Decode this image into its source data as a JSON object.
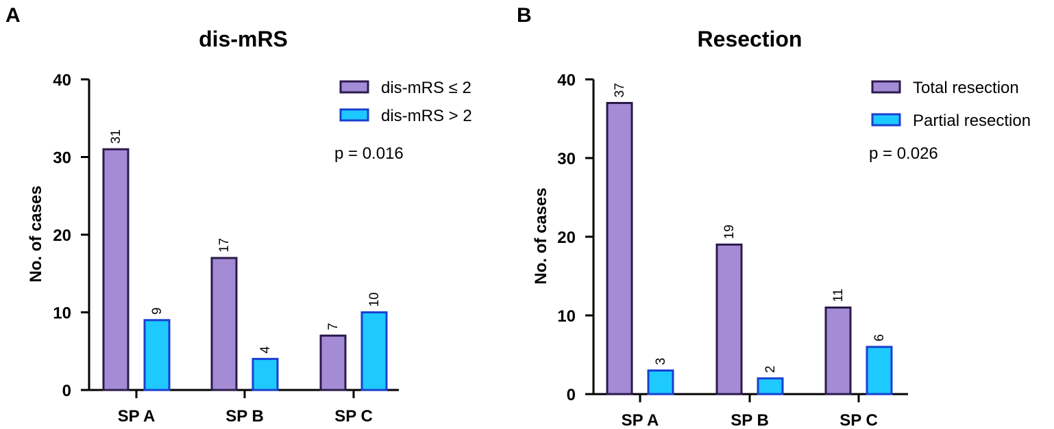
{
  "chart_data": [
    {
      "panel": "A",
      "type": "bar",
      "title": "dis-mRS",
      "xlabel": "",
      "ylabel": "No. of cases",
      "categories": [
        "SP A",
        "SP B",
        "SP C"
      ],
      "series": [
        {
          "name": "dis-mRS ≤ 2",
          "values": [
            31,
            17,
            7
          ],
          "color": "#a48bd6",
          "stroke": "#2b1a4a"
        },
        {
          "name": "dis-mRS > 2",
          "values": [
            9,
            4,
            10
          ],
          "color": "#1ec9ff",
          "stroke": "#1a3fd0"
        }
      ],
      "ylim": [
        0,
        40
      ],
      "yticks": [
        0,
        10,
        20,
        30,
        40
      ],
      "annotation": "p = 0.016",
      "legend": "top-right",
      "grid": false
    },
    {
      "panel": "B",
      "type": "bar",
      "title": "Resection",
      "xlabel": "",
      "ylabel": "No. of cases",
      "categories": [
        "SP A",
        "SP B",
        "SP C"
      ],
      "series": [
        {
          "name": "Total resection",
          "values": [
            37,
            19,
            11
          ],
          "color": "#a48bd6",
          "stroke": "#2b1a4a"
        },
        {
          "name": "Partial resection",
          "values": [
            3,
            2,
            6
          ],
          "color": "#1ec9ff",
          "stroke": "#1a3fd0"
        }
      ],
      "ylim": [
        0,
        40
      ],
      "yticks": [
        0,
        10,
        20,
        30,
        40
      ],
      "annotation": "p = 0.026",
      "legend": "top-right",
      "grid": false
    }
  ]
}
